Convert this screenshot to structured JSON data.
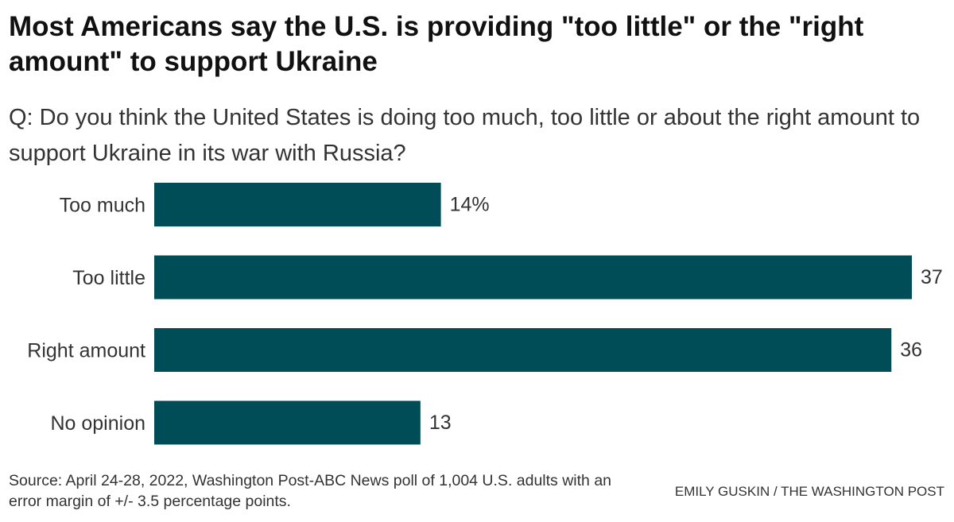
{
  "header": {
    "title": "Most Americans say the U.S. is providing \"too little\" or the \"right amount\" to support Ukraine",
    "question": "Q: Do you think the United States is doing too much, too little or about the right amount to support Ukraine in its war with Russia?"
  },
  "chart_data": {
    "type": "bar",
    "orientation": "horizontal",
    "categories": [
      "Too much",
      "Too little",
      "Right amount",
      "No opinion"
    ],
    "values": [
      14,
      37,
      36,
      13
    ],
    "value_labels": [
      "14%",
      "37",
      "36",
      "13"
    ],
    "unit": "%",
    "bar_color": "#004c57",
    "xlim": [
      0,
      37
    ],
    "grid": false,
    "legend": "none"
  },
  "footer": {
    "source": "Source: April 24-28, 2022, Washington Post-ABC News poll of 1,004 U.S. adults with an error margin of +/- 3.5 percentage points.",
    "credit": "EMILY GUSKIN / THE WASHINGTON POST"
  }
}
